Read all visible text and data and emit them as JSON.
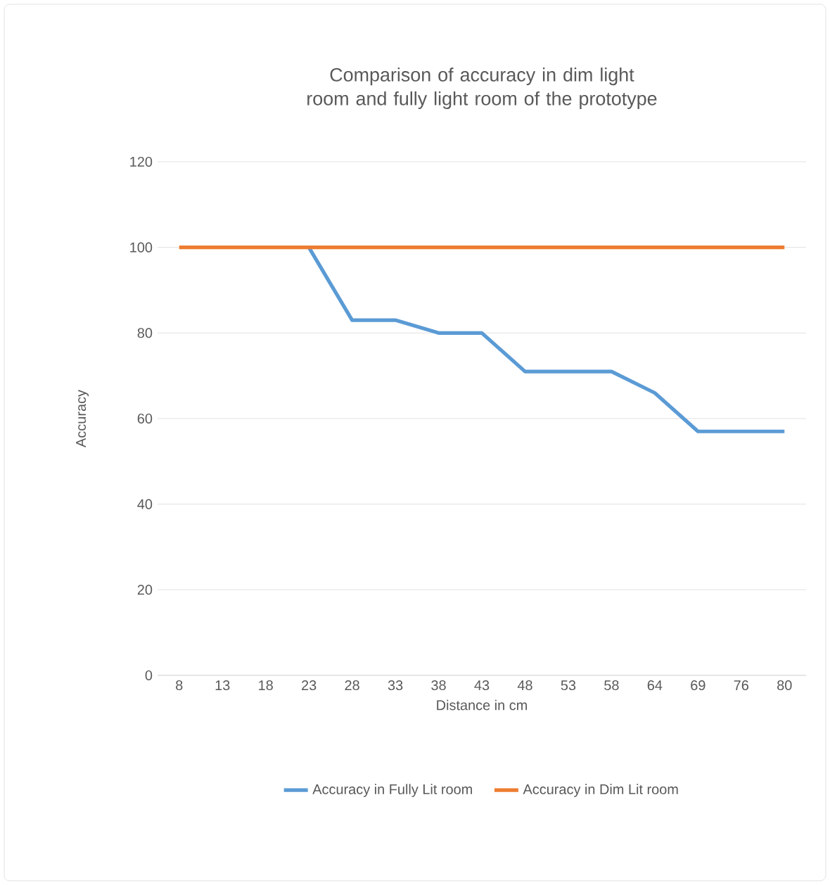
{
  "chart_data": {
    "type": "line",
    "title": "Comparison of accuracy in dim light room and fully light room of the prototype",
    "xlabel": "Distance in cm",
    "ylabel": "Accuracy",
    "categories": [
      "8",
      "13",
      "18",
      "23",
      "28",
      "33",
      "38",
      "43",
      "48",
      "53",
      "58",
      "64",
      "69",
      "76",
      "80"
    ],
    "series": [
      {
        "name": "Accuracy in Fully Lit room",
        "color": "#5b9bd5",
        "values": [
          null,
          null,
          null,
          100,
          83,
          83,
          80,
          80,
          71,
          71,
          71,
          66,
          57,
          57,
          57
        ]
      },
      {
        "name": "Accuracy in Dim Lit room",
        "color": "#ed7d31",
        "values": [
          100,
          100,
          100,
          100,
          100,
          100,
          100,
          100,
          100,
          100,
          100,
          100,
          100,
          100,
          100
        ]
      }
    ],
    "ylim": [
      0,
      120
    ],
    "yticks": [
      0,
      20,
      40,
      60,
      80,
      100,
      120
    ],
    "grid": "y",
    "legend": "bottom",
    "marker": "none",
    "line_style": "solid"
  }
}
